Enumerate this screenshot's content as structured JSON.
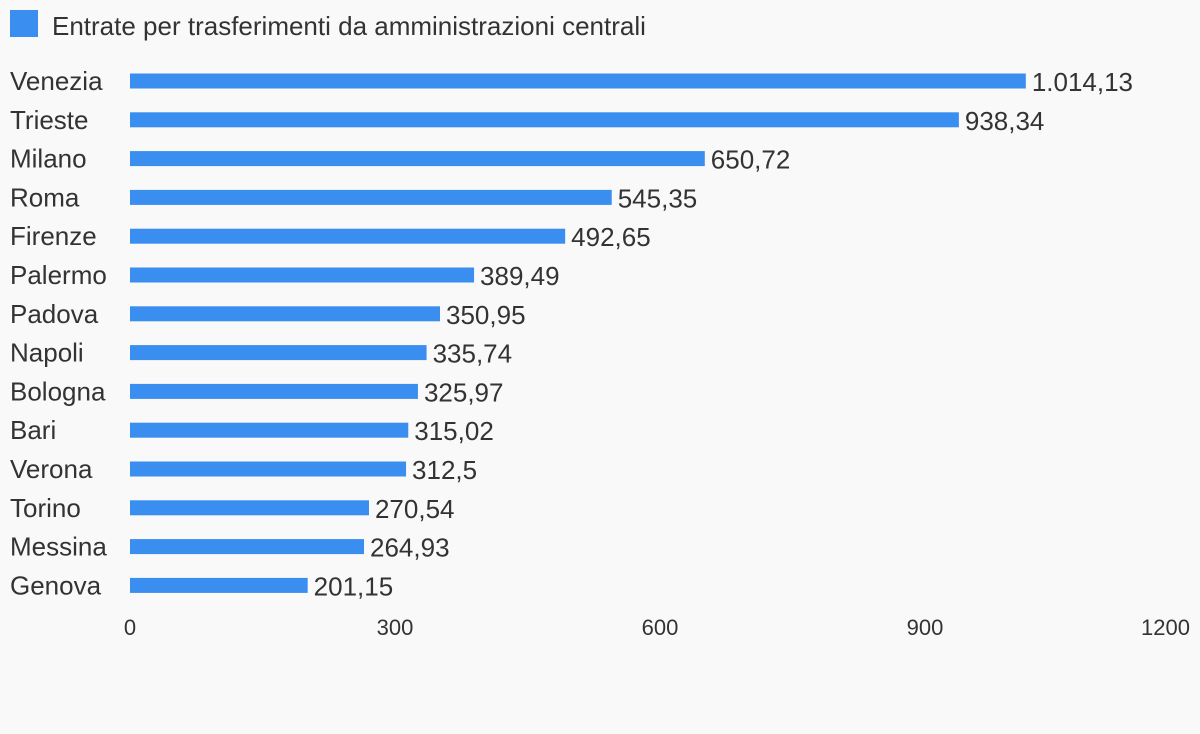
{
  "chart_data": {
    "type": "bar",
    "orientation": "horizontal",
    "legend_position": "top-left",
    "grid": false,
    "xlim": [
      0,
      1200
    ],
    "ticks": [
      "0",
      "300",
      "600",
      "900",
      "1200"
    ],
    "tick_values": [
      0,
      300,
      600,
      900,
      1200
    ],
    "categories": [
      "Venezia",
      "Trieste",
      "Milano",
      "Roma",
      "Firenze",
      "Palermo",
      "Padova",
      "Napoli",
      "Bologna",
      "Bari",
      "Verona",
      "Torino",
      "Messina",
      "Genova"
    ],
    "series": [
      {
        "name": "Entrate per trasferimenti da amministrazioni centrali",
        "color": "#3a8ef0",
        "values": [
          1014.13,
          938.34,
          650.72,
          545.35,
          492.65,
          389.49,
          350.95,
          335.74,
          325.97,
          315.02,
          312.5,
          270.54,
          264.93,
          201.15
        ],
        "value_labels": [
          "1.014,13",
          "938,34",
          "650,72",
          "545,35",
          "492,65",
          "389,49",
          "350,95",
          "335,74",
          "325,97",
          "315,02",
          "312,5",
          "270,54",
          "264,93",
          "201,15"
        ]
      }
    ]
  }
}
